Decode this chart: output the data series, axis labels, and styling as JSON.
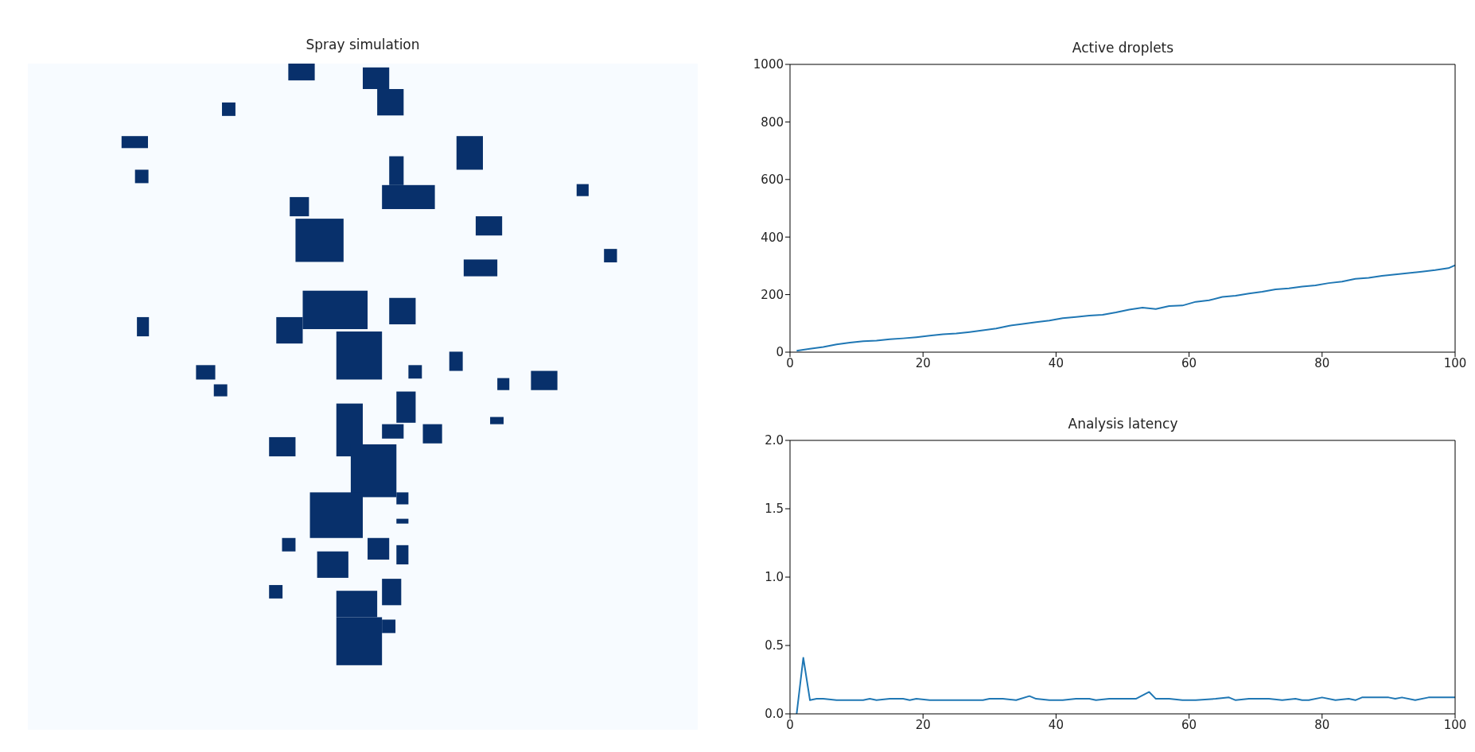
{
  "chart_data": [
    {
      "type": "other",
      "title": "Spray simulation"
    },
    {
      "type": "line",
      "title": "Active droplets",
      "color": "#1f77b4",
      "x": [
        1,
        3,
        5,
        7,
        9,
        11,
        13,
        15,
        17,
        19,
        21,
        23,
        25,
        27,
        29,
        31,
        33,
        35,
        37,
        39,
        41,
        43,
        45,
        47,
        49,
        51,
        53,
        55,
        57,
        59,
        61,
        63,
        65,
        67,
        69,
        71,
        73,
        75,
        77,
        79,
        81,
        83,
        85,
        87,
        89,
        91,
        93,
        95,
        97,
        99,
        100
      ],
      "values": [
        5,
        12,
        18,
        27,
        33,
        38,
        40,
        45,
        48,
        52,
        57,
        62,
        65,
        70,
        76,
        82,
        92,
        98,
        104,
        110,
        118,
        122,
        127,
        130,
        138,
        148,
        155,
        150,
        160,
        162,
        175,
        180,
        192,
        196,
        204,
        210,
        218,
        222,
        228,
        232,
        240,
        245,
        255,
        258,
        265,
        270,
        275,
        280,
        285,
        292,
        302
      ],
      "xlim": [
        0,
        100
      ],
      "xticks": [
        0,
        20,
        40,
        60,
        80,
        100
      ],
      "ylim": [
        0,
        1000
      ],
      "yticks": [
        0,
        200,
        400,
        600,
        800,
        1000
      ]
    },
    {
      "type": "line",
      "title": "Analysis latency",
      "color": "#1f77b4",
      "x": [
        1,
        2,
        3,
        4,
        5,
        7,
        9,
        11,
        12,
        13,
        15,
        17,
        18,
        19,
        21,
        24,
        27,
        29,
        30,
        32,
        34,
        36,
        37,
        39,
        41,
        43,
        45,
        46,
        48,
        50,
        52,
        54,
        55,
        57,
        59,
        61,
        64,
        66,
        67,
        69,
        72,
        74,
        76,
        77,
        78,
        80,
        82,
        84,
        85,
        86,
        88,
        90,
        91,
        92,
        94,
        96,
        98,
        100
      ],
      "values": [
        0,
        0.41,
        0.1,
        0.11,
        0.11,
        0.1,
        0.1,
        0.1,
        0.11,
        0.1,
        0.11,
        0.11,
        0.1,
        0.11,
        0.1,
        0.1,
        0.1,
        0.1,
        0.11,
        0.11,
        0.1,
        0.13,
        0.11,
        0.1,
        0.1,
        0.11,
        0.11,
        0.1,
        0.11,
        0.11,
        0.11,
        0.16,
        0.11,
        0.11,
        0.1,
        0.1,
        0.11,
        0.12,
        0.1,
        0.11,
        0.11,
        0.1,
        0.11,
        0.1,
        0.1,
        0.12,
        0.1,
        0.11,
        0.1,
        0.12,
        0.12,
        0.12,
        0.11,
        0.12,
        0.1,
        0.12,
        0.12,
        0.12
      ],
      "xlim": [
        0,
        100
      ],
      "xticks": [
        0,
        20,
        40,
        60,
        80,
        100
      ],
      "ylim": [
        0,
        2
      ],
      "yticks": [
        {
          "value": 0,
          "label": "0.0"
        },
        {
          "value": 0.5,
          "label": "0.5"
        },
        {
          "value": 1,
          "label": "1.0"
        },
        {
          "value": 1.5,
          "label": "1.5"
        },
        {
          "value": 2,
          "label": "2.0"
        }
      ]
    }
  ]
}
